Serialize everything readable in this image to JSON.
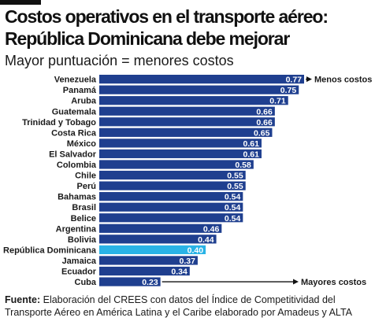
{
  "title_line1": "Costos operativos en el transporte aéreo:",
  "title_line2": "República Dominicana debe mejorar",
  "subtitle": "Mayor puntuación = menores costos",
  "source_label": "Fuente:",
  "source_text": " Elaboración del CREES con datos del Índice de Competitividad del Transporte Aéreo en América Latina y el Caribe elaborado por Amadeus y ALTA",
  "colors": {
    "bar": "#1f3f8f",
    "highlight": "#29b3e6",
    "text": "#1a1a1a"
  },
  "chart_data": {
    "type": "bar",
    "orientation": "horizontal",
    "categories": [
      "Venezuela",
      "Panamá",
      "Aruba",
      "Guatemala",
      "Trinidad y Tobago",
      "Costa Rica",
      "México",
      "El Salvador",
      "Colombia",
      "Chile",
      "Perú",
      "Bahamas",
      "Brasil",
      "Belice",
      "Argentina",
      "Bolivia",
      "República Dominicana",
      "Jamaica",
      "Ecuador",
      "Cuba"
    ],
    "values": [
      0.77,
      0.75,
      0.71,
      0.66,
      0.66,
      0.65,
      0.61,
      0.61,
      0.58,
      0.55,
      0.55,
      0.54,
      0.54,
      0.54,
      0.46,
      0.44,
      0.4,
      0.37,
      0.34,
      0.23
    ],
    "value_labels": [
      "0.77",
      "0.75",
      "0.71",
      "0.66",
      "0.66",
      "0.65",
      "0.61",
      "0.61",
      "0.58",
      "0.55",
      "0.55",
      "0.54",
      "0.54",
      "0.54",
      "0.46",
      "0.44",
      "0.40",
      "0.37",
      "0.34",
      "0.23"
    ],
    "highlight_category": "República Dominicana",
    "annotations": [
      {
        "text": "Menos costos",
        "category": "Venezuela"
      },
      {
        "text": "Mayores costos",
        "category": "Cuba"
      }
    ],
    "xlim": [
      0,
      0.77
    ],
    "grid": false,
    "legend": "none"
  }
}
